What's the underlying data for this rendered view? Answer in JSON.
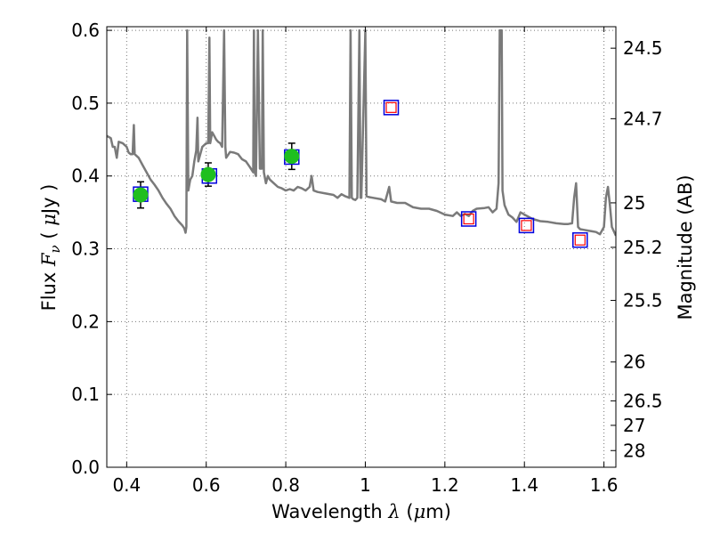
{
  "chart_data": {
    "type": "scatter",
    "xlabel": {
      "pre": "Wavelength",
      "sym": "λ",
      "open": "(",
      "unit_pre": "μ",
      "unit": "m)"
    },
    "ylabel": {
      "pre": "Flux",
      "sym": "F",
      "sub": "ν",
      "open": "(",
      "unit_pre": "μ",
      "unit": "Jy )"
    },
    "y2label": "Magnitude (AB)",
    "xlim": [
      0.35,
      1.63
    ],
    "ylim": [
      0.0,
      0.605
    ],
    "grid": true,
    "xticks": [
      {
        "value": 0.4,
        "label": "0.4"
      },
      {
        "value": 0.6,
        "label": "0.6"
      },
      {
        "value": 0.8,
        "label": "0.8"
      },
      {
        "value": 1.0,
        "label": "1"
      },
      {
        "value": 1.2,
        "label": "1.2"
      },
      {
        "value": 1.4,
        "label": "1.4"
      },
      {
        "value": 1.6,
        "label": "1.6"
      }
    ],
    "yticks": [
      {
        "value": 0.0,
        "label": "0.0"
      },
      {
        "value": 0.1,
        "label": "0.1"
      },
      {
        "value": 0.2,
        "label": "0.2"
      },
      {
        "value": 0.3,
        "label": "0.3"
      },
      {
        "value": 0.4,
        "label": "0.4"
      },
      {
        "value": 0.5,
        "label": "0.5"
      },
      {
        "value": 0.6,
        "label": "0.6"
      }
    ],
    "y2ticks": [
      {
        "mag": 24.5,
        "label": "24.5"
      },
      {
        "mag": 24.7,
        "label": "24.7"
      },
      {
        "mag": 25,
        "label": "25"
      },
      {
        "mag": 25.2,
        "label": "25.2"
      },
      {
        "mag": 25.5,
        "label": "25.5"
      },
      {
        "mag": 26,
        "label": "26"
      },
      {
        "mag": 26.5,
        "label": "26.5"
      },
      {
        "mag": 27,
        "label": "27"
      },
      {
        "mag": 28,
        "label": "28"
      }
    ],
    "colors": {
      "model_line": "#7a7a7a",
      "observed": "#1fbf1f",
      "model_box": "#0000dd",
      "upper_box": "#ff0000",
      "grid": "#777777"
    },
    "model_spectrum": [
      [
        0.35,
        0.455
      ],
      [
        0.36,
        0.452
      ],
      [
        0.365,
        0.44
      ],
      [
        0.37,
        0.44
      ],
      [
        0.375,
        0.425
      ],
      [
        0.38,
        0.447
      ],
      [
        0.39,
        0.445
      ],
      [
        0.4,
        0.44
      ],
      [
        0.405,
        0.432
      ],
      [
        0.41,
        0.43
      ],
      [
        0.415,
        0.43
      ],
      [
        0.418,
        0.47
      ],
      [
        0.42,
        0.43
      ],
      [
        0.43,
        0.425
      ],
      [
        0.44,
        0.415
      ],
      [
        0.45,
        0.405
      ],
      [
        0.46,
        0.395
      ],
      [
        0.47,
        0.388
      ],
      [
        0.48,
        0.38
      ],
      [
        0.49,
        0.37
      ],
      [
        0.5,
        0.362
      ],
      [
        0.51,
        0.355
      ],
      [
        0.52,
        0.345
      ],
      [
        0.53,
        0.338
      ],
      [
        0.54,
        0.332
      ],
      [
        0.545,
        0.328
      ],
      [
        0.548,
        0.322
      ],
      [
        0.55,
        0.33
      ],
      [
        0.552,
        0.6
      ],
      [
        0.555,
        0.38
      ],
      [
        0.558,
        0.39
      ],
      [
        0.56,
        0.395
      ],
      [
        0.565,
        0.4
      ],
      [
        0.57,
        0.42
      ],
      [
        0.575,
        0.435
      ],
      [
        0.578,
        0.48
      ],
      [
        0.58,
        0.42
      ],
      [
        0.59,
        0.44
      ],
      [
        0.6,
        0.445
      ],
      [
        0.605,
        0.445
      ],
      [
        0.608,
        0.59
      ],
      [
        0.61,
        0.445
      ],
      [
        0.615,
        0.46
      ],
      [
        0.62,
        0.455
      ],
      [
        0.625,
        0.45
      ],
      [
        0.63,
        0.447
      ],
      [
        0.635,
        0.445
      ],
      [
        0.64,
        0.44
      ],
      [
        0.645,
        0.6
      ],
      [
        0.648,
        0.44
      ],
      [
        0.65,
        0.425
      ],
      [
        0.66,
        0.433
      ],
      [
        0.67,
        0.432
      ],
      [
        0.68,
        0.43
      ],
      [
        0.69,
        0.423
      ],
      [
        0.7,
        0.42
      ],
      [
        0.71,
        0.412
      ],
      [
        0.718,
        0.405
      ],
      [
        0.72,
        0.6
      ],
      [
        0.722,
        0.405
      ],
      [
        0.725,
        0.4
      ],
      [
        0.73,
        0.6
      ],
      [
        0.735,
        0.41
      ],
      [
        0.74,
        0.41
      ],
      [
        0.742,
        0.6
      ],
      [
        0.745,
        0.405
      ],
      [
        0.75,
        0.39
      ],
      [
        0.755,
        0.4
      ],
      [
        0.76,
        0.395
      ],
      [
        0.77,
        0.39
      ],
      [
        0.78,
        0.385
      ],
      [
        0.79,
        0.383
      ],
      [
        0.8,
        0.38
      ],
      [
        0.81,
        0.382
      ],
      [
        0.82,
        0.38
      ],
      [
        0.83,
        0.385
      ],
      [
        0.84,
        0.383
      ],
      [
        0.85,
        0.38
      ],
      [
        0.86,
        0.385
      ],
      [
        0.865,
        0.4
      ],
      [
        0.87,
        0.38
      ],
      [
        0.88,
        0.378
      ],
      [
        0.9,
        0.376
      ],
      [
        0.92,
        0.374
      ],
      [
        0.93,
        0.37
      ],
      [
        0.94,
        0.375
      ],
      [
        0.95,
        0.372
      ],
      [
        0.96,
        0.37
      ],
      [
        0.963,
        0.6
      ],
      [
        0.966,
        0.37
      ],
      [
        0.97,
        0.368
      ],
      [
        0.975,
        0.367
      ],
      [
        0.98,
        0.37
      ],
      [
        0.985,
        0.6
      ],
      [
        0.988,
        0.37
      ],
      [
        0.99,
        0.37
      ],
      [
        1.0,
        0.6
      ],
      [
        1.003,
        0.372
      ],
      [
        1.01,
        0.371
      ],
      [
        1.02,
        0.37
      ],
      [
        1.04,
        0.368
      ],
      [
        1.05,
        0.365
      ],
      [
        1.06,
        0.385
      ],
      [
        1.065,
        0.365
      ],
      [
        1.08,
        0.363
      ],
      [
        1.1,
        0.363
      ],
      [
        1.12,
        0.357
      ],
      [
        1.14,
        0.355
      ],
      [
        1.16,
        0.355
      ],
      [
        1.18,
        0.352
      ],
      [
        1.2,
        0.347
      ],
      [
        1.22,
        0.345
      ],
      [
        1.23,
        0.35
      ],
      [
        1.24,
        0.345
      ],
      [
        1.25,
        0.348
      ],
      [
        1.26,
        0.345
      ],
      [
        1.27,
        0.352
      ],
      [
        1.28,
        0.355
      ],
      [
        1.3,
        0.356
      ],
      [
        1.31,
        0.357
      ],
      [
        1.32,
        0.35
      ],
      [
        1.33,
        0.355
      ],
      [
        1.335,
        0.39
      ],
      [
        1.338,
        0.6
      ],
      [
        1.343,
        0.6
      ],
      [
        1.345,
        0.38
      ],
      [
        1.35,
        0.36
      ],
      [
        1.36,
        0.347
      ],
      [
        1.37,
        0.343
      ],
      [
        1.38,
        0.337
      ],
      [
        1.39,
        0.35
      ],
      [
        1.4,
        0.347
      ],
      [
        1.42,
        0.341
      ],
      [
        1.44,
        0.338
      ],
      [
        1.46,
        0.337
      ],
      [
        1.48,
        0.335
      ],
      [
        1.5,
        0.334
      ],
      [
        1.51,
        0.334
      ],
      [
        1.52,
        0.335
      ],
      [
        1.525,
        0.37
      ],
      [
        1.53,
        0.39
      ],
      [
        1.535,
        0.33
      ],
      [
        1.54,
        0.327
      ],
      [
        1.55,
        0.326
      ],
      [
        1.56,
        0.325
      ],
      [
        1.57,
        0.324
      ],
      [
        1.58,
        0.323
      ],
      [
        1.59,
        0.32
      ],
      [
        1.6,
        0.33
      ],
      [
        1.605,
        0.37
      ],
      [
        1.61,
        0.385
      ],
      [
        1.615,
        0.36
      ],
      [
        1.62,
        0.33
      ],
      [
        1.63,
        0.318
      ]
    ],
    "observed_points": [
      {
        "x": 0.435,
        "y": 0.374,
        "yerr": 0.018
      },
      {
        "x": 0.605,
        "y": 0.402,
        "yerr": 0.016
      },
      {
        "x": 0.815,
        "y": 0.427,
        "yerr": 0.018
      }
    ],
    "model_photometry": [
      {
        "x": 0.435,
        "y": 0.375
      },
      {
        "x": 0.608,
        "y": 0.4
      },
      {
        "x": 0.815,
        "y": 0.426
      },
      {
        "x": 1.065,
        "y": 0.494
      },
      {
        "x": 1.26,
        "y": 0.341
      },
      {
        "x": 1.405,
        "y": 0.332
      },
      {
        "x": 1.54,
        "y": 0.312
      }
    ],
    "upper_limits": [
      {
        "x": 1.065,
        "y": 0.494
      },
      {
        "x": 1.26,
        "y": 0.341
      },
      {
        "x": 1.405,
        "y": 0.332
      },
      {
        "x": 1.54,
        "y": 0.312
      }
    ]
  }
}
